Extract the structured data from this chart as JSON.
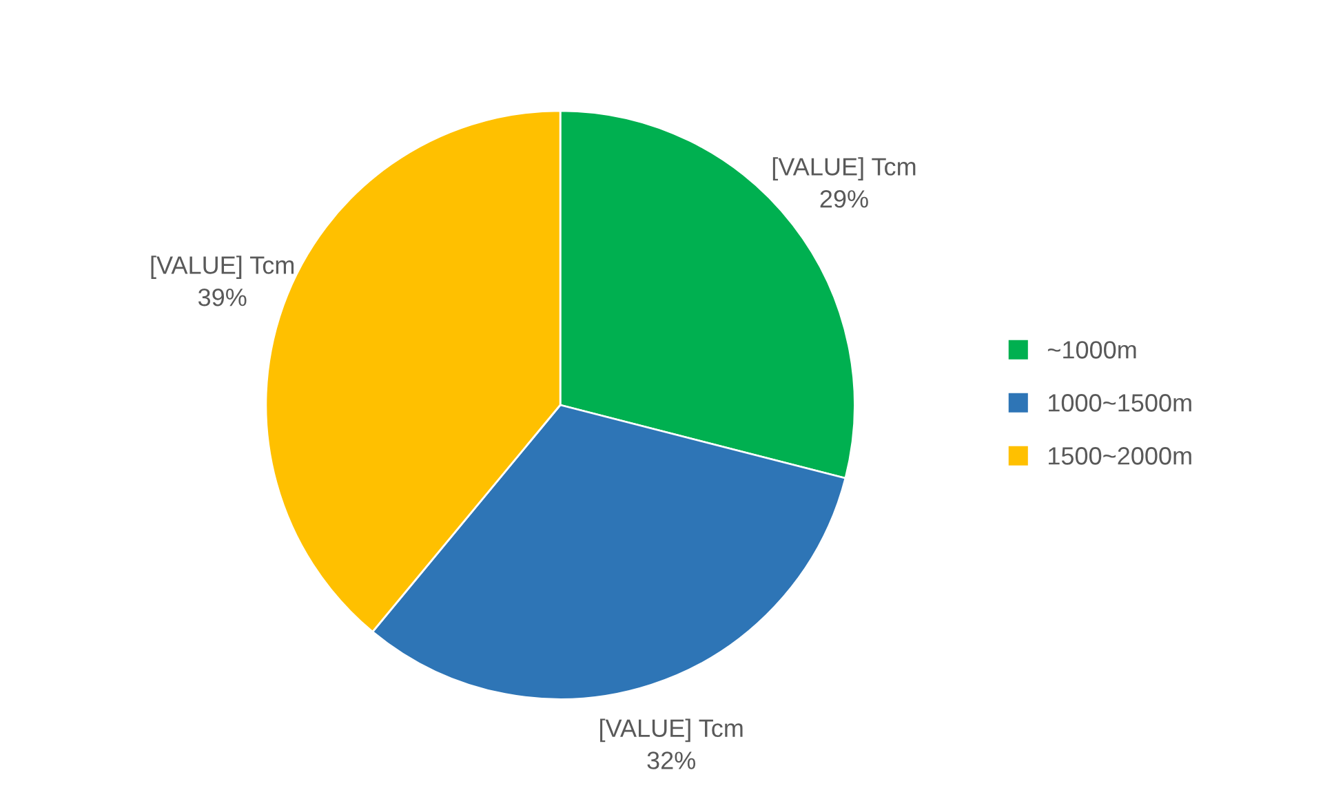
{
  "chart_data": {
    "type": "pie",
    "categories": [
      "~1000m",
      "1000~1500m",
      "1500~2000m"
    ],
    "values": [
      29,
      32,
      39
    ],
    "colors": [
      "#00b050",
      "#2e75b6",
      "#ffc000"
    ],
    "value_labels": [
      "[VALUE] Tcm\n29%",
      "[VALUE] Tcm\n32%",
      "[VALUE] Tcm\n39%"
    ],
    "legend": "right"
  }
}
